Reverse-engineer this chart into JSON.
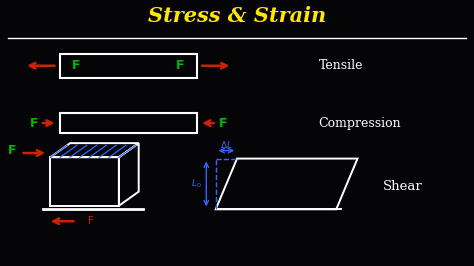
{
  "title": "Stress & Strain",
  "title_color": "#FFE800",
  "bg_color": "#050508",
  "white": "#FFFFFF",
  "green": "#00BB00",
  "red": "#CC2200",
  "blue": "#3366FF",
  "tensile_label": "Tensile",
  "compression_label": "Compression",
  "shear_label": "Shear",
  "figsize": [
    4.74,
    2.66
  ],
  "dpi": 100
}
